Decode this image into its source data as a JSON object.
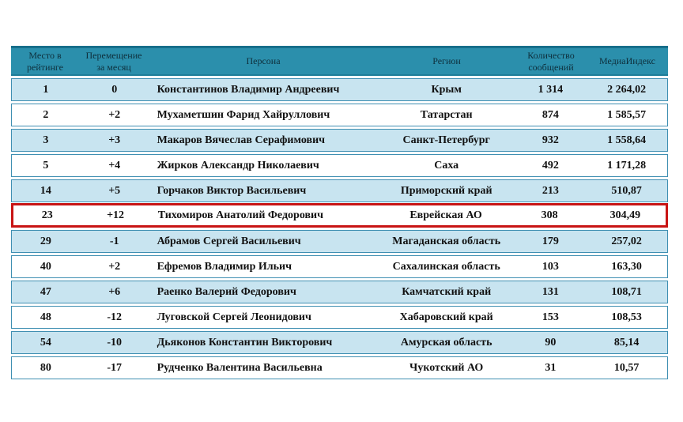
{
  "colors": {
    "header_bg": "#2b8fac",
    "header_top_border": "#176f8b",
    "band_row_bg": "#c8e4f0",
    "row_border": "#3f8fb2",
    "highlight_border": "#c81414",
    "header_text": "#0e2f3c",
    "body_text": "#111111"
  },
  "table": {
    "columns": {
      "place": "Место в\nрейтинге",
      "change": "Перемещение\nза месяц",
      "person": "Персона",
      "region": "Регион",
      "messages": "Количество\nсообщений",
      "media_index": "МедиаИндекс"
    },
    "rows": [
      {
        "place": "1",
        "change": "0",
        "person": "Константинов Владимир Андреевич",
        "region": "Крым",
        "messages": "1 314",
        "media_index": "2 264,02",
        "highlighted": false
      },
      {
        "place": "2",
        "change": "+2",
        "person": "Мухаметшин Фарид Хайруллович",
        "region": "Татарстан",
        "messages": "874",
        "media_index": "1 585,57",
        "highlighted": false
      },
      {
        "place": "3",
        "change": "+3",
        "person": "Макаров Вячеслав Серафимович",
        "region": "Санкт-Петербург",
        "messages": "932",
        "media_index": "1 558,64",
        "highlighted": false
      },
      {
        "place": "5",
        "change": "+4",
        "person": "Жирков Александр Николаевич",
        "region": "Саха",
        "messages": "492",
        "media_index": "1 171,28",
        "highlighted": false
      },
      {
        "place": "14",
        "change": "+5",
        "person": "Горчаков Виктор Васильевич",
        "region": "Приморский край",
        "messages": "213",
        "media_index": "510,87",
        "highlighted": false
      },
      {
        "place": "23",
        "change": "+12",
        "person": "Тихомиров Анатолий Федорович",
        "region": "Еврейская АО",
        "messages": "308",
        "media_index": "304,49",
        "highlighted": true
      },
      {
        "place": "29",
        "change": "-1",
        "person": "Абрамов Сергей Васильевич",
        "region": "Магаданская область",
        "messages": "179",
        "media_index": "257,02",
        "highlighted": false
      },
      {
        "place": "40",
        "change": "+2",
        "person": "Ефремов Владимир Ильич",
        "region": "Сахалинская область",
        "messages": "103",
        "media_index": "163,30",
        "highlighted": false
      },
      {
        "place": "47",
        "change": "+6",
        "person": "Раенко Валерий Федорович",
        "region": "Камчатский край",
        "messages": "131",
        "media_index": "108,71",
        "highlighted": false
      },
      {
        "place": "48",
        "change": "-12",
        "person": "Луговской Сергей Леонидович",
        "region": "Хабаровский край",
        "messages": "153",
        "media_index": "108,53",
        "highlighted": false
      },
      {
        "place": "54",
        "change": "-10",
        "person": "Дьяконов Константин Викторович",
        "region": "Амурская область",
        "messages": "90",
        "media_index": "85,14",
        "highlighted": false
      },
      {
        "place": "80",
        "change": "-17",
        "person": "Рудченко Валентина Васильевна",
        "region": "Чукотский АО",
        "messages": "31",
        "media_index": "10,57",
        "highlighted": false
      }
    ]
  }
}
